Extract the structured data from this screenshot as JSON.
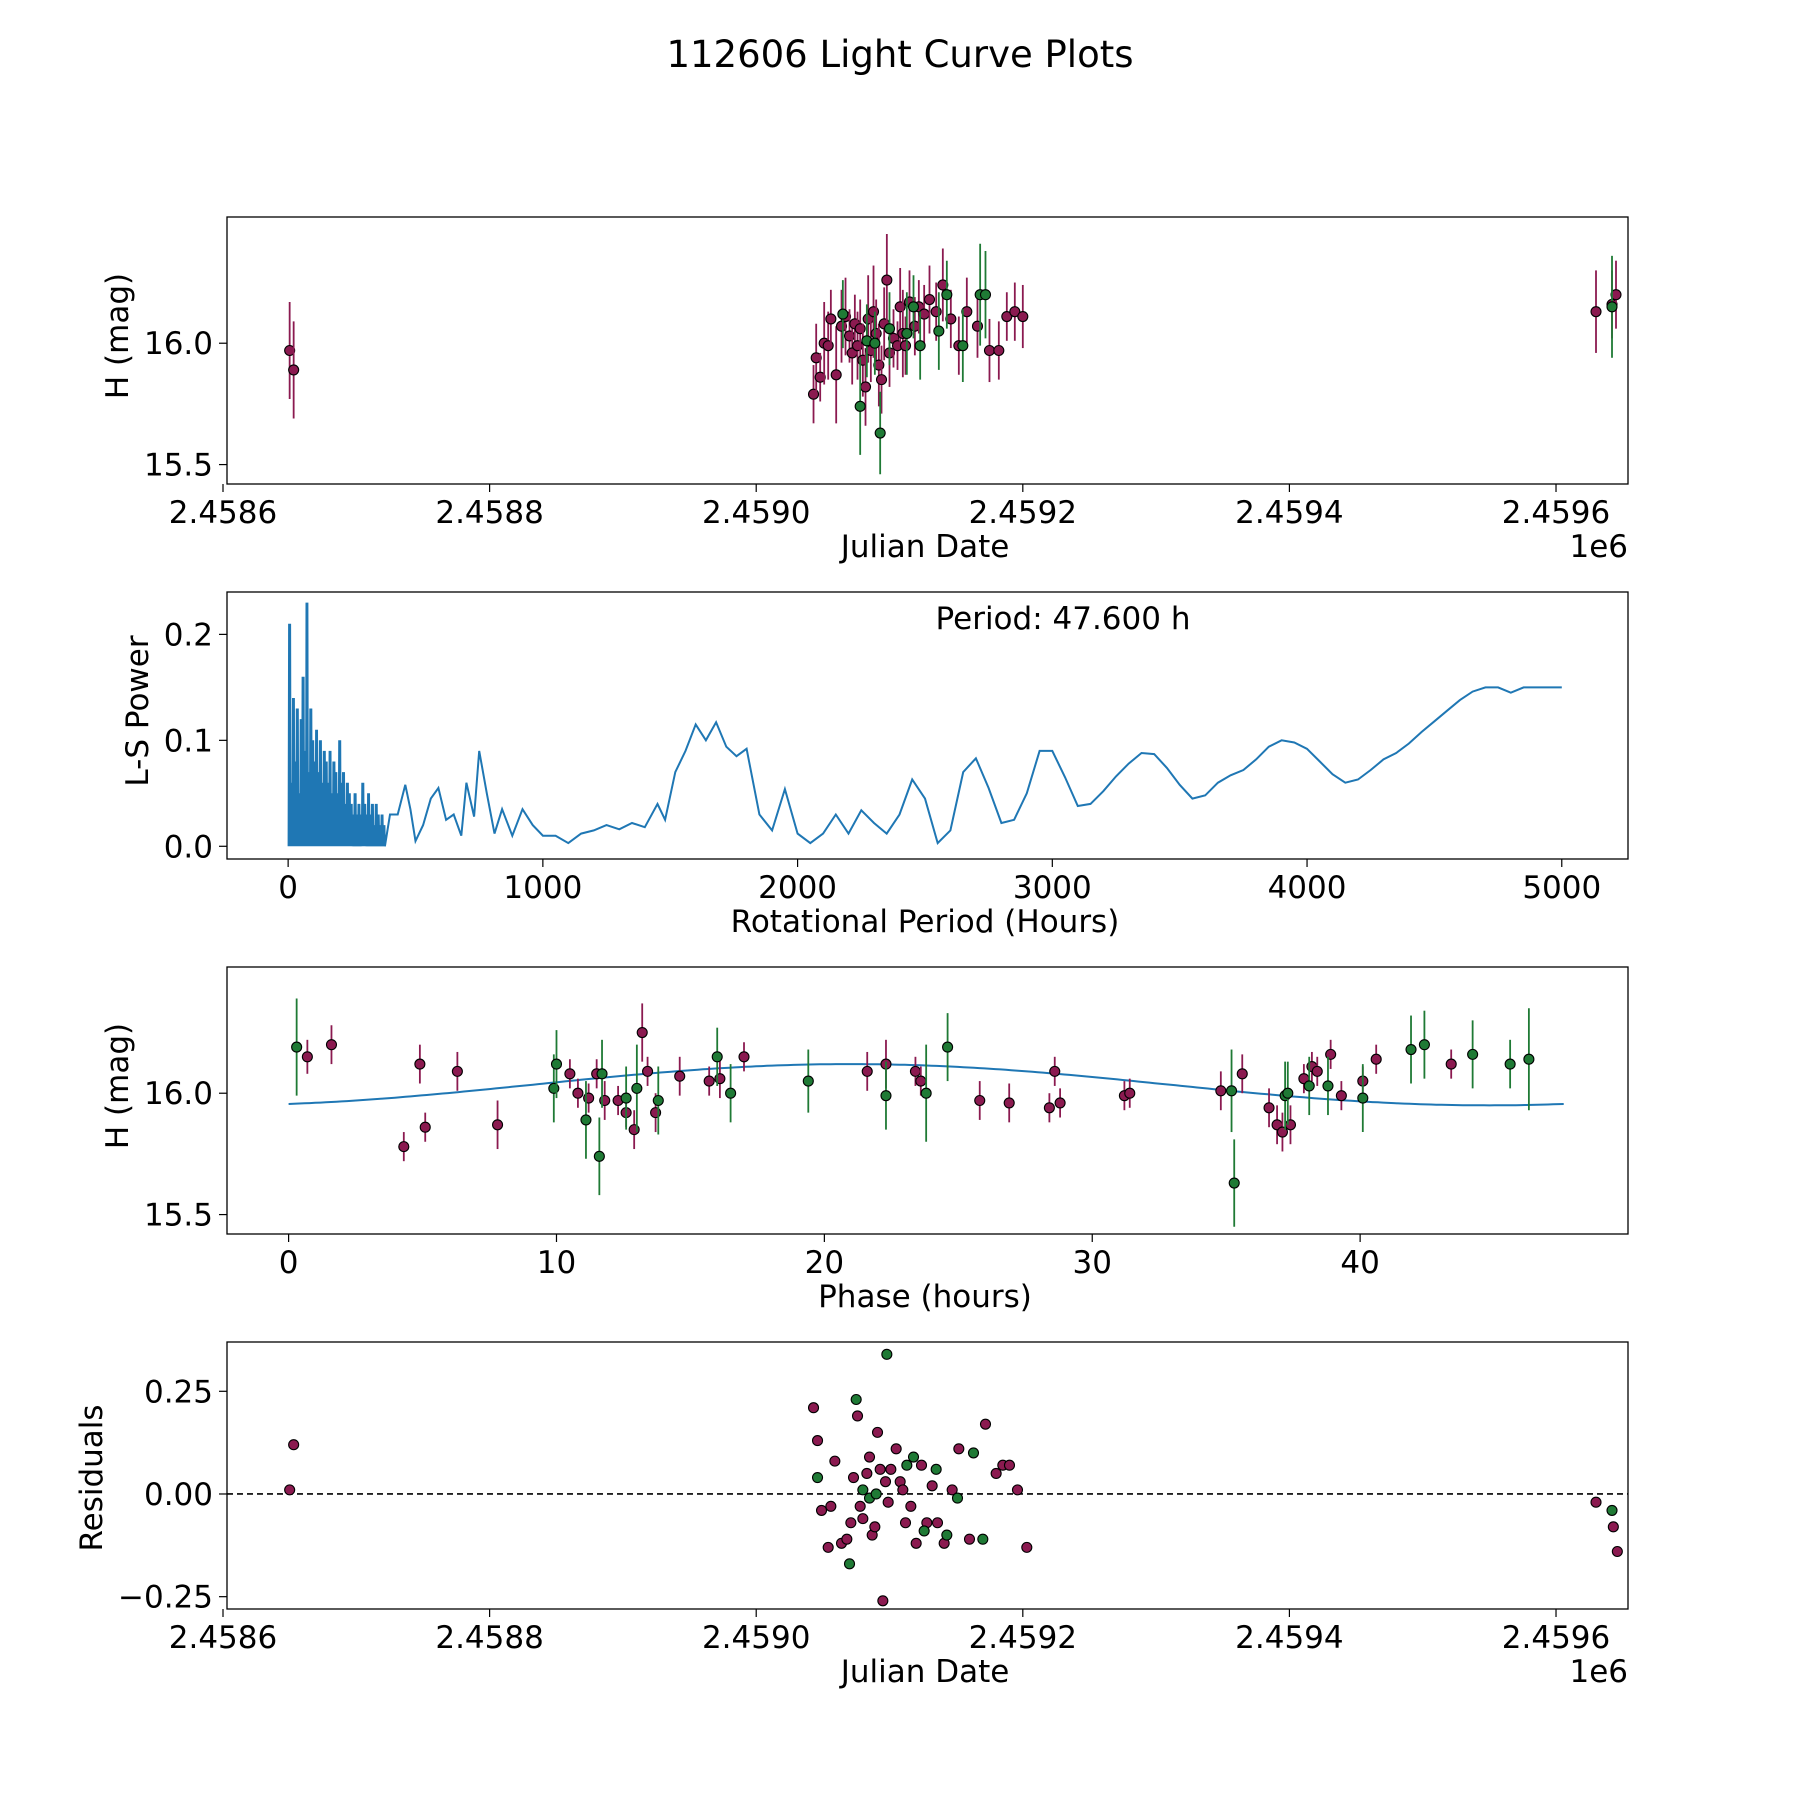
{
  "figure": {
    "title": "112606 Light Curve Plots"
  },
  "colors": {
    "magenta_points": "#8b1a50",
    "green_points": "#1f7a35",
    "curve": "#1f77b4",
    "zero_line": "#000000"
  },
  "chart_data": [
    {
      "type": "scatter",
      "title": "",
      "xlabel": "Julian Date",
      "ylabel": "H (mag)",
      "xlim": [
        2458603,
        2459654
      ],
      "ylim": [
        15.42,
        16.52
      ],
      "x_offset_label": "1e6",
      "xticks": [
        2458600,
        2458800,
        2459000,
        2459200,
        2459400,
        2459600
      ],
      "xtick_labels": [
        "2.4586",
        "2.4588",
        "2.4590",
        "2.4592",
        "2.4594",
        "2.4596"
      ],
      "yticks": [
        15.5,
        16.0
      ],
      "ytick_labels": [
        "15.5",
        "16.0"
      ],
      "errorbars": true,
      "series": [
        {
          "name": "magenta",
          "x": [
            2458650,
            2458653,
            2459043,
            2459045,
            2459048,
            2459051,
            2459054,
            2459056,
            2459060,
            2459064,
            2459067,
            2459070,
            2459072,
            2459074,
            2459076,
            2459078,
            2459080,
            2459082,
            2459084,
            2459086,
            2459088,
            2459090,
            2459092,
            2459094,
            2459096,
            2459098,
            2459100,
            2459103,
            2459106,
            2459108,
            2459110,
            2459112,
            2459115,
            2459119,
            2459122,
            2459126,
            2459130,
            2459135,
            2459140,
            2459146,
            2459152,
            2459158,
            2459166,
            2459175,
            2459182,
            2459188,
            2459194,
            2459200,
            2459630,
            2459642,
            2459645
          ],
          "y": [
            15.97,
            15.89,
            15.79,
            15.94,
            15.86,
            16.0,
            15.99,
            16.1,
            15.87,
            16.07,
            16.11,
            16.03,
            15.96,
            16.08,
            15.99,
            16.06,
            15.93,
            15.82,
            16.1,
            15.97,
            16.13,
            16.04,
            15.91,
            15.85,
            16.08,
            16.26,
            15.96,
            16.02,
            15.99,
            16.15,
            16.04,
            15.99,
            16.17,
            16.07,
            16.15,
            16.12,
            16.18,
            16.13,
            16.24,
            16.1,
            15.99,
            16.13,
            16.07,
            15.97,
            15.97,
            16.11,
            16.13,
            16.11,
            16.13,
            16.16,
            16.2
          ],
          "yerr": [
            0.2,
            0.2,
            0.12,
            0.14,
            0.1,
            0.17,
            0.14,
            0.12,
            0.2,
            0.15,
            0.16,
            0.11,
            0.13,
            0.12,
            0.14,
            0.12,
            0.15,
            0.16,
            0.18,
            0.13,
            0.19,
            0.14,
            0.17,
            0.14,
            0.15,
            0.19,
            0.14,
            0.12,
            0.1,
            0.16,
            0.18,
            0.12,
            0.13,
            0.12,
            0.11,
            0.12,
            0.14,
            0.12,
            0.15,
            0.12,
            0.12,
            0.14,
            0.13,
            0.13,
            0.12,
            0.1,
            0.12,
            0.13,
            0.17,
            0.14,
            0.14
          ]
        },
        {
          "name": "green",
          "x": [
            2459065,
            2459078,
            2459083,
            2459089,
            2459093,
            2459100,
            2459113,
            2459118,
            2459123,
            2459137,
            2459143,
            2459155,
            2459168,
            2459172,
            2459642
          ],
          "y": [
            16.12,
            15.74,
            16.01,
            16.0,
            15.63,
            16.06,
            16.04,
            16.15,
            15.99,
            16.05,
            16.2,
            15.99,
            16.2,
            16.2,
            16.15
          ],
          "yerr": [
            0.14,
            0.2,
            0.15,
            0.13,
            0.17,
            0.15,
            0.17,
            0.13,
            0.14,
            0.16,
            0.14,
            0.15,
            0.21,
            0.18,
            0.21
          ]
        }
      ]
    },
    {
      "type": "line",
      "title": "",
      "xlabel": "Rotational Period (Hours)",
      "ylabel": "L-S Power",
      "xlim": [
        -240,
        5260
      ],
      "ylim": [
        -0.012,
        0.24
      ],
      "xticks": [
        0,
        1000,
        2000,
        3000,
        4000,
        5000
      ],
      "xtick_labels": [
        "0",
        "1000",
        "2000",
        "3000",
        "4000",
        "5000"
      ],
      "yticks": [
        0.0,
        0.1,
        0.2
      ],
      "ytick_labels": [
        "0.0",
        "0.1",
        "0.2"
      ],
      "annotation": "Period: 47.600 h",
      "spike_peaks": [
        0.21,
        0.06,
        0.14,
        0.08,
        0.13,
        0.05,
        0.12,
        0.16,
        0.09,
        0.23,
        0.07,
        0.13,
        0.1,
        0.08,
        0.11,
        0.07,
        0.1,
        0.06,
        0.09,
        0.08,
        0.06,
        0.09,
        0.05,
        0.08,
        0.07,
        0.05,
        0.1,
        0.06,
        0.07,
        0.04,
        0.06,
        0.05,
        0.04,
        0.03,
        0.05,
        0.03,
        0.04,
        0.03,
        0.06,
        0.04,
        0.03,
        0.05,
        0.03,
        0.04,
        0.02,
        0.04,
        0.03,
        0.02,
        0.03,
        0.02
      ],
      "x": [
        50,
        100,
        150,
        200,
        250,
        300,
        330,
        360,
        400,
        430,
        460,
        480,
        500,
        530,
        560,
        590,
        620,
        650,
        680,
        700,
        730,
        750,
        780,
        810,
        840,
        880,
        920,
        960,
        1000,
        1050,
        1100,
        1150,
        1200,
        1250,
        1300,
        1350,
        1400,
        1450,
        1480,
        1520,
        1560,
        1600,
        1640,
        1680,
        1720,
        1760,
        1800,
        1850,
        1900,
        1950,
        2000,
        2050,
        2100,
        2150,
        2200,
        2250,
        2300,
        2350,
        2400,
        2450,
        2500,
        2550,
        2600,
        2650,
        2700,
        2750,
        2800,
        2850,
        2900,
        2950,
        3000,
        3050,
        3100,
        3150,
        3200,
        3250,
        3300,
        3350,
        3400,
        3450,
        3500,
        3550,
        3600,
        3650,
        3700,
        3750,
        3800,
        3850,
        3900,
        3950,
        4000,
        4050,
        4100,
        4150,
        4200,
        4250,
        4300,
        4350,
        4400,
        4450,
        4500,
        4550,
        4600,
        4650,
        4700,
        4750,
        4800,
        4850,
        4900,
        4950,
        5000
      ],
      "y": [
        0.02,
        0.02,
        0.05,
        0.03,
        0.02,
        0.04,
        0.02,
        0.01,
        0.03,
        0.03,
        0.058,
        0.035,
        0.005,
        0.02,
        0.045,
        0.055,
        0.025,
        0.03,
        0.01,
        0.06,
        0.028,
        0.09,
        0.05,
        0.012,
        0.035,
        0.01,
        0.035,
        0.02,
        0.01,
        0.01,
        0.003,
        0.012,
        0.015,
        0.02,
        0.016,
        0.022,
        0.018,
        0.04,
        0.025,
        0.07,
        0.09,
        0.115,
        0.1,
        0.117,
        0.094,
        0.085,
        0.092,
        0.03,
        0.015,
        0.054,
        0.012,
        0.003,
        0.012,
        0.03,
        0.012,
        0.034,
        0.022,
        0.012,
        0.03,
        0.063,
        0.045,
        0.003,
        0.015,
        0.07,
        0.083,
        0.055,
        0.022,
        0.025,
        0.05,
        0.09,
        0.09,
        0.065,
        0.038,
        0.04,
        0.052,
        0.066,
        0.078,
        0.088,
        0.087,
        0.074,
        0.058,
        0.045,
        0.048,
        0.06,
        0.067,
        0.072,
        0.082,
        0.094,
        0.1,
        0.098,
        0.092,
        0.08,
        0.068,
        0.06,
        0.063,
        0.072,
        0.082,
        0.088,
        0.097,
        0.108,
        0.118,
        0.128,
        0.138,
        0.146,
        0.15,
        0.15,
        0.145,
        0.15,
        0.15,
        0.15,
        0.15
      ]
    },
    {
      "type": "scatter",
      "title": "",
      "xlabel": "Phase (hours)",
      "ylabel": "H (mag)",
      "xlim": [
        -2.3,
        50.0
      ],
      "ylim": [
        15.42,
        16.52
      ],
      "xticks": [
        0,
        10,
        20,
        30,
        40
      ],
      "xtick_labels": [
        "0",
        "10",
        "20",
        "30",
        "40"
      ],
      "yticks": [
        15.5,
        16.0
      ],
      "ytick_labels": [
        "15.5",
        "16.0"
      ],
      "errorbars": true,
      "model_curve": {
        "type": "sinusoid",
        "period_hours": 47.6,
        "mean": 16.035,
        "amplitude": 0.085,
        "phase_of_max_hours": 21.0,
        "x_range": [
          0,
          47.6
        ]
      },
      "series": [
        {
          "name": "magenta",
          "x": [
            0.7,
            1.6,
            4.3,
            4.9,
            5.1,
            6.3,
            7.8,
            10.5,
            10.8,
            11.2,
            11.5,
            11.8,
            12.3,
            12.6,
            12.9,
            13.2,
            13.4,
            13.7,
            14.6,
            15.7,
            16.1,
            17.0,
            21.6,
            22.3,
            23.4,
            23.6,
            25.8,
            26.9,
            28.4,
            28.6,
            28.8,
            31.2,
            31.4,
            34.8,
            35.6,
            36.6,
            36.9,
            37.1,
            37.4,
            37.9,
            38.2,
            38.4,
            38.9,
            39.3,
            40.1,
            40.6,
            43.4
          ],
          "y": [
            16.15,
            16.2,
            15.78,
            16.12,
            15.86,
            16.09,
            15.87,
            16.08,
            16.0,
            15.98,
            16.08,
            15.97,
            15.97,
            15.92,
            15.85,
            16.25,
            16.09,
            15.92,
            16.07,
            16.05,
            16.06,
            16.15,
            16.09,
            16.12,
            16.09,
            16.05,
            15.97,
            15.96,
            15.94,
            16.09,
            15.96,
            15.99,
            16.0,
            16.01,
            16.08,
            15.94,
            15.87,
            15.84,
            15.87,
            16.06,
            16.11,
            16.09,
            16.16,
            15.99,
            16.05,
            16.14,
            16.12
          ],
          "yerr": [
            0.07,
            0.08,
            0.06,
            0.08,
            0.06,
            0.08,
            0.1,
            0.06,
            0.06,
            0.06,
            0.06,
            0.08,
            0.06,
            0.06,
            0.08,
            0.12,
            0.06,
            0.08,
            0.08,
            0.06,
            0.08,
            0.06,
            0.08,
            0.1,
            0.06,
            0.06,
            0.08,
            0.08,
            0.06,
            0.06,
            0.06,
            0.06,
            0.06,
            0.08,
            0.08,
            0.08,
            0.08,
            0.08,
            0.08,
            0.06,
            0.06,
            0.06,
            0.06,
            0.06,
            0.06,
            0.06,
            0.06
          ]
        },
        {
          "name": "green",
          "x": [
            0.3,
            9.9,
            10.0,
            11.1,
            11.6,
            11.7,
            12.6,
            13.0,
            13.8,
            16.0,
            16.5,
            19.4,
            22.3,
            23.8,
            24.6,
            35.2,
            35.3,
            37.2,
            37.3,
            38.1,
            38.8,
            40.1,
            41.9,
            42.4,
            44.2,
            45.6,
            46.3
          ],
          "y": [
            16.19,
            16.02,
            16.12,
            15.89,
            15.74,
            16.08,
            15.98,
            16.02,
            15.97,
            16.15,
            16.0,
            16.05,
            15.99,
            16.0,
            16.19,
            16.01,
            15.63,
            15.99,
            16.0,
            16.03,
            16.03,
            15.98,
            16.18,
            16.2,
            16.16,
            16.12,
            16.14
          ],
          "yerr": [
            0.2,
            0.14,
            0.14,
            0.16,
            0.16,
            0.14,
            0.13,
            0.18,
            0.14,
            0.12,
            0.12,
            0.13,
            0.14,
            0.2,
            0.14,
            0.17,
            0.18,
            0.14,
            0.13,
            0.12,
            0.12,
            0.14,
            0.14,
            0.14,
            0.14,
            0.1,
            0.21
          ]
        }
      ]
    },
    {
      "type": "scatter",
      "title": "",
      "xlabel": "Julian Date",
      "ylabel": "Residuals",
      "xlim": [
        2458603,
        2459654
      ],
      "ylim": [
        -0.28,
        0.37
      ],
      "x_offset_label": "1e6",
      "xticks": [
        2458600,
        2458800,
        2459000,
        2459200,
        2459400,
        2459600
      ],
      "xtick_labels": [
        "2.4586",
        "2.4588",
        "2.4590",
        "2.4592",
        "2.4594",
        "2.4596"
      ],
      "yticks": [
        -0.25,
        0.0,
        0.25
      ],
      "ytick_labels": [
        "−0.25",
        "0.00",
        "0.25"
      ],
      "reference_line": 0.0,
      "series": [
        {
          "name": "magenta",
          "x": [
            2458650,
            2458653,
            2459043,
            2459046,
            2459049,
            2459054,
            2459056,
            2459059,
            2459064,
            2459068,
            2459071,
            2459073,
            2459076,
            2459078,
            2459080,
            2459083,
            2459085,
            2459087,
            2459089,
            2459091,
            2459093,
            2459095,
            2459097,
            2459099,
            2459101,
            2459105,
            2459108,
            2459110,
            2459112,
            2459116,
            2459120,
            2459124,
            2459128,
            2459132,
            2459136,
            2459141,
            2459147,
            2459152,
            2459160,
            2459172,
            2459180,
            2459185,
            2459190,
            2459196,
            2459203,
            2459630,
            2459643,
            2459646
          ],
          "y": [
            0.01,
            0.12,
            0.21,
            0.13,
            -0.04,
            -0.13,
            -0.03,
            0.08,
            -0.12,
            -0.11,
            -0.07,
            0.04,
            0.19,
            -0.03,
            -0.06,
            0.05,
            0.09,
            -0.1,
            -0.08,
            0.15,
            0.06,
            -0.26,
            0.03,
            -0.02,
            0.06,
            0.11,
            0.03,
            0.01,
            -0.07,
            -0.03,
            -0.12,
            0.07,
            -0.07,
            0.02,
            -0.07,
            -0.12,
            0.01,
            0.11,
            -0.11,
            0.17,
            0.05,
            0.07,
            0.07,
            0.01,
            -0.13,
            -0.02,
            -0.08,
            -0.14
          ],
          "yerr": []
        },
        {
          "name": "green",
          "x": [
            2459046,
            2459070,
            2459075,
            2459080,
            2459085,
            2459090,
            2459098,
            2459113,
            2459118,
            2459126,
            2459135,
            2459143,
            2459151,
            2459163,
            2459170,
            2459642
          ],
          "y": [
            0.04,
            -0.17,
            0.23,
            0.01,
            -0.01,
            0.0,
            0.34,
            0.07,
            0.09,
            -0.09,
            0.06,
            -0.1,
            -0.01,
            0.1,
            -0.11,
            -0.04
          ],
          "yerr": []
        }
      ]
    }
  ]
}
